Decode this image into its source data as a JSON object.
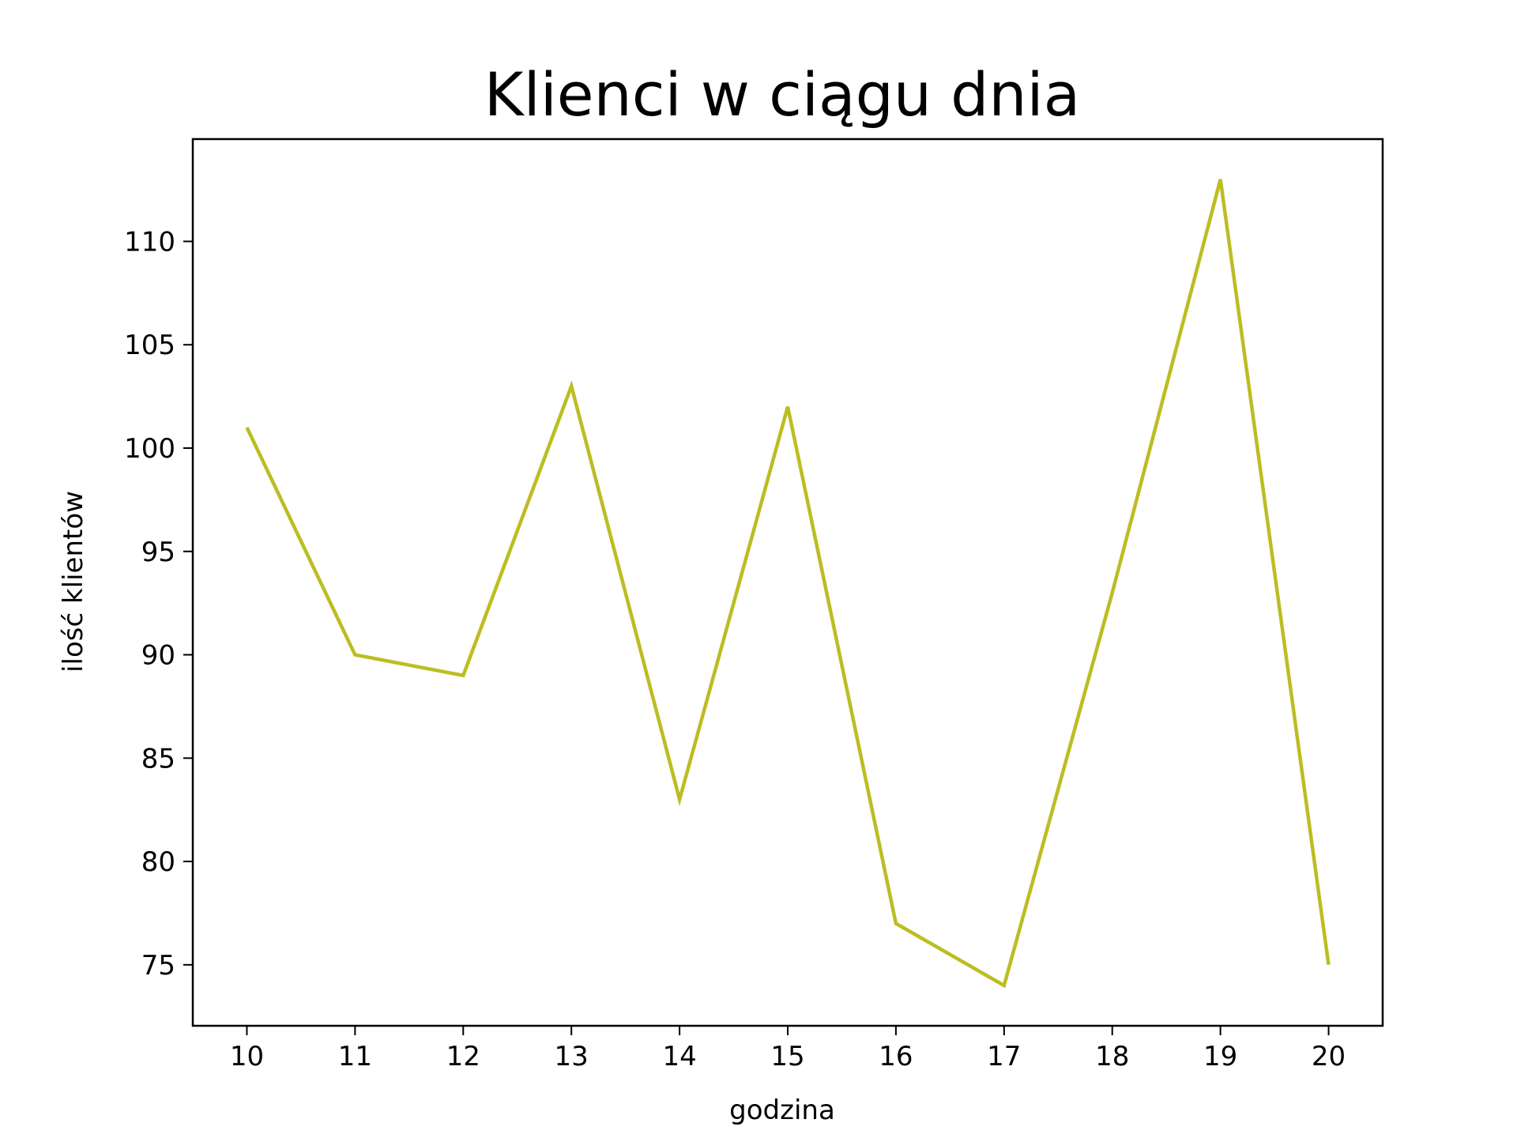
{
  "chart_data": {
    "type": "line",
    "title": "Klienci w ciągu dnia",
    "xlabel": "godzina",
    "ylabel": "ilość klientów",
    "x": [
      10,
      11,
      12,
      13,
      14,
      15,
      16,
      17,
      18,
      19,
      20
    ],
    "series": [
      {
        "values": [
          101,
          90,
          89,
          103,
          83,
          102,
          77,
          74,
          93,
          113,
          75
        ],
        "color": "#bcbd22"
      }
    ],
    "xlim": [
      9.5,
      20.5
    ],
    "ylim": [
      72.05,
      114.95
    ],
    "xticks": [
      10,
      11,
      12,
      13,
      14,
      15,
      16,
      17,
      18,
      19,
      20
    ],
    "yticks": [
      75,
      80,
      85,
      90,
      95,
      100,
      105,
      110
    ],
    "grid": false,
    "legend": "none"
  }
}
